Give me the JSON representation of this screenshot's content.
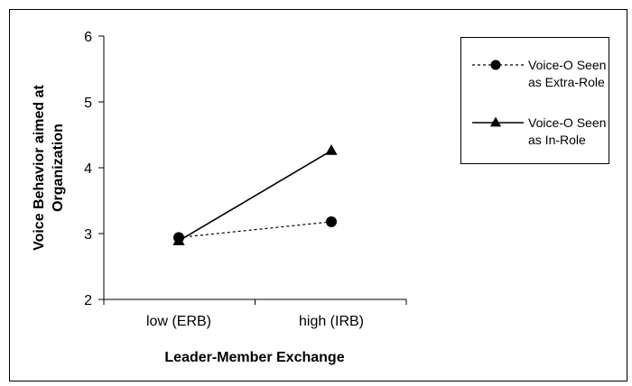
{
  "chart_data": {
    "type": "line",
    "title": "",
    "xlabel": "Leader-Member Exchange",
    "ylabel": [
      "Voice Behavior aimed at",
      "Organization"
    ],
    "categories": [
      "low (ERB)",
      "high (IRB)"
    ],
    "ylim": [
      2,
      6
    ],
    "yticks": [
      "2",
      "3",
      "4",
      "5",
      "6"
    ],
    "grid": false,
    "legend_position": "top-right",
    "series": [
      {
        "name_lines": [
          "Voice-O Seen",
          "as Extra-Role"
        ],
        "values": [
          2.94,
          3.18
        ],
        "line_style": "dashed",
        "marker": "circle",
        "color": "#000000"
      },
      {
        "name_lines": [
          "Voice-O Seen",
          "as In-Role"
        ],
        "values": [
          2.89,
          4.26
        ],
        "line_style": "solid",
        "marker": "triangle",
        "color": "#000000"
      }
    ]
  }
}
